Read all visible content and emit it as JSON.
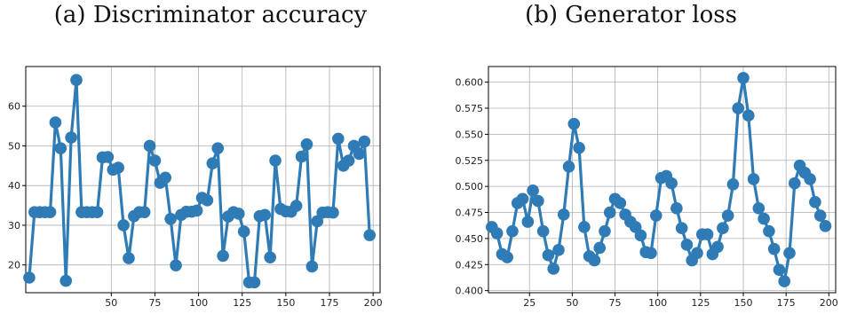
{
  "chart_data": [
    {
      "type": "line",
      "caption": "(a) Discriminator accuracy",
      "xlim": [
        1,
        204
      ],
      "ylim": [
        13,
        70
      ],
      "xticks": [
        50,
        75,
        100,
        125,
        150,
        175,
        200
      ],
      "xtick_labels": [
        "50",
        "75",
        "100",
        "125",
        "150",
        "175",
        "200"
      ],
      "yticks": [
        20,
        30,
        40,
        50,
        60
      ],
      "ytick_labels": [
        "20",
        "30",
        "40",
        "50",
        "60"
      ],
      "grid": true,
      "color": "#2f7bb6",
      "x": [
        3,
        6,
        9,
        12,
        15,
        18,
        21,
        24,
        27,
        30,
        33,
        36,
        39,
        42,
        45,
        48,
        51,
        54,
        57,
        60,
        63,
        66,
        69,
        72,
        75,
        78,
        81,
        84,
        87,
        90,
        93,
        96,
        99,
        102,
        105,
        108,
        111,
        114,
        117,
        120,
        123,
        126,
        129,
        132,
        135,
        138,
        141,
        144,
        147,
        150,
        153,
        156,
        159,
        162,
        165,
        168,
        171,
        174,
        177,
        180,
        183,
        186,
        189,
        192,
        195,
        198
      ],
      "y": [
        16.8,
        33.3,
        33.3,
        33.3,
        33.3,
        55.9,
        49.4,
        16.0,
        52.1,
        66.6,
        33.3,
        33.3,
        33.3,
        33.3,
        47.1,
        47.2,
        44.0,
        44.5,
        30.0,
        21.7,
        32.3,
        33.3,
        33.3,
        50.0,
        46.3,
        40.7,
        42.0,
        31.6,
        19.9,
        32.6,
        33.4,
        33.4,
        33.7,
        36.9,
        36.3,
        45.6,
        49.4,
        22.3,
        32.2,
        33.3,
        32.9,
        28.4,
        15.6,
        15.6,
        32.3,
        32.6,
        21.9,
        46.3,
        34.1,
        33.5,
        33.4,
        34.9,
        47.3,
        50.4,
        19.6,
        31.0,
        33.2,
        33.3,
        33.2,
        51.8,
        45.0,
        46.3,
        50.0,
        48.0,
        51.1,
        27.5
      ]
    },
    {
      "type": "line",
      "caption": "(b) Generator loss",
      "xlim": [
        1,
        204
      ],
      "ylim": [
        0.398,
        0.615
      ],
      "xticks": [
        25,
        50,
        75,
        100,
        125,
        150,
        175,
        200
      ],
      "xtick_labels": [
        "25",
        "50",
        "75",
        "100",
        "125",
        "150",
        "175",
        "200"
      ],
      "yticks": [
        0.4,
        0.425,
        0.45,
        0.475,
        0.5,
        0.525,
        0.55,
        0.575,
        0.6
      ],
      "ytick_labels": [
        "0.400",
        "0.425",
        "0.450",
        "0.475",
        "0.500",
        "0.525",
        "0.550",
        "0.575",
        "0.600"
      ],
      "grid": true,
      "color": "#2f7bb6",
      "x": [
        3,
        6,
        9,
        12,
        15,
        18,
        21,
        24,
        27,
        30,
        33,
        36,
        39,
        42,
        45,
        48,
        51,
        54,
        57,
        60,
        63,
        66,
        69,
        72,
        75,
        78,
        81,
        84,
        87,
        90,
        93,
        96,
        99,
        102,
        105,
        108,
        111,
        114,
        117,
        120,
        123,
        126,
        129,
        132,
        135,
        138,
        141,
        144,
        147,
        150,
        153,
        156,
        159,
        162,
        165,
        168,
        171,
        174,
        177,
        180,
        183,
        186,
        189,
        192,
        195,
        198
      ],
      "y": [
        0.461,
        0.455,
        0.435,
        0.432,
        0.457,
        0.484,
        0.488,
        0.466,
        0.496,
        0.486,
        0.457,
        0.434,
        0.421,
        0.439,
        0.473,
        0.519,
        0.56,
        0.537,
        0.461,
        0.433,
        0.429,
        0.441,
        0.457,
        0.475,
        0.488,
        0.484,
        0.473,
        0.466,
        0.461,
        0.453,
        0.437,
        0.436,
        0.472,
        0.508,
        0.51,
        0.503,
        0.479,
        0.46,
        0.444,
        0.429,
        0.436,
        0.454,
        0.454,
        0.435,
        0.442,
        0.46,
        0.472,
        0.502,
        0.575,
        0.604,
        0.568,
        0.507,
        0.479,
        0.469,
        0.457,
        0.44,
        0.42,
        0.409,
        0.436,
        0.503,
        0.52,
        0.513,
        0.507,
        0.485,
        0.472,
        0.462
      ]
    }
  ]
}
